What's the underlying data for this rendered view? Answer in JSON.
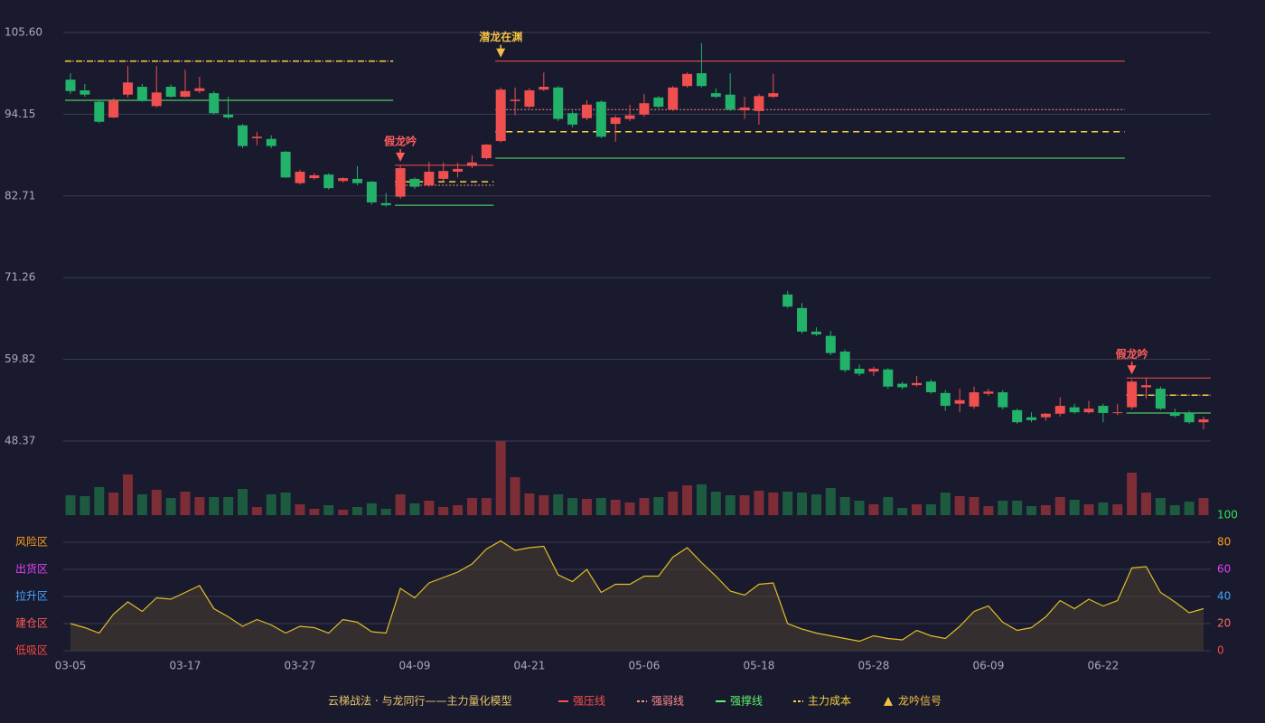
{
  "chart_data": {
    "type": "candlestick",
    "categories": [
      "03-05",
      null,
      null,
      null,
      null,
      null,
      null,
      null,
      "03-17",
      null,
      null,
      null,
      null,
      null,
      null,
      null,
      "03-27",
      null,
      null,
      null,
      null,
      null,
      null,
      null,
      "04-09",
      null,
      null,
      null,
      null,
      null,
      null,
      null,
      "04-21",
      null,
      null,
      null,
      null,
      null,
      null,
      null,
      "05-06",
      null,
      null,
      null,
      null,
      null,
      null,
      null,
      "05-18",
      null,
      null,
      null,
      null,
      null,
      null,
      null,
      "05-28",
      null,
      null,
      null,
      null,
      null,
      null,
      null,
      "06-09",
      null,
      null,
      null,
      null,
      null,
      null,
      null,
      "06-22",
      null,
      null,
      null,
      null,
      null,
      null,
      null
    ],
    "ylim": [
      48.37,
      105.6
    ],
    "yticks": [
      {
        "value": 105.6,
        "label": "105.60"
      },
      94.15,
      82.71,
      71.26,
      59.82,
      48.37
    ],
    "grid": true,
    "up_color": "#ef4f4f",
    "down_color": "#22b26a",
    "open": [
      99.0,
      97.5,
      95.9,
      93.7,
      96.9,
      98.0,
      95.3,
      98.0,
      96.6,
      97.4,
      97.1,
      94.1,
      92.6,
      90.8,
      90.7,
      88.9,
      84.5,
      85.2,
      85.7,
      84.8,
      85.1,
      84.7,
      81.7,
      82.6,
      85.1,
      84.2,
      85.1,
      86.1,
      86.9,
      88.0,
      90.4,
      96.0,
      95.2,
      97.6,
      97.9,
      94.3,
      93.6,
      95.9,
      92.8,
      93.5,
      94.1,
      96.5,
      94.8,
      98.1,
      99.9,
      97.1,
      96.9,
      94.7,
      94.6,
      96.6,
      68.9,
      67.0,
      63.7,
      63.1,
      60.9,
      58.5,
      58.1,
      58.4,
      56.4,
      56.2,
      56.7,
      55.1,
      53.6,
      53.2,
      55.0,
      55.2,
      52.7,
      51.7,
      51.7,
      52.2,
      53.1,
      52.4,
      53.3,
      52.3,
      53.1,
      55.9,
      55.7,
      52.4,
      52.3,
      51.0
    ],
    "high": [
      99.9,
      98.4,
      96.0,
      96.4,
      100.9,
      98.4,
      100.9,
      98.3,
      100.4,
      99.4,
      97.4,
      96.6,
      92.8,
      91.7,
      91.2,
      89.0,
      86.4,
      85.9,
      85.9,
      85.3,
      86.9,
      84.8,
      83.1,
      87.0,
      85.3,
      87.5,
      87.4,
      87.4,
      88.4,
      90.0,
      97.9,
      97.9,
      97.8,
      100.0,
      98.1,
      94.6,
      96.1,
      96.1,
      94.0,
      95.5,
      97.0,
      96.7,
      98.1,
      100.0,
      104.1,
      97.8,
      99.9,
      96.6,
      97.0,
      99.8,
      69.4,
      67.7,
      64.3,
      63.8,
      61.2,
      59.1,
      58.8,
      58.6,
      56.7,
      57.5,
      57.0,
      55.5,
      55.7,
      56.0,
      55.7,
      55.5,
      52.9,
      52.4,
      52.3,
      54.5,
      53.6,
      54.0,
      53.6,
      53.6,
      57.0,
      57.2,
      56.0,
      52.9,
      52.6,
      51.8
    ],
    "low": [
      97.0,
      96.6,
      92.9,
      93.6,
      96.5,
      95.9,
      95.1,
      96.5,
      96.5,
      97.1,
      94.1,
      93.5,
      89.4,
      89.8,
      89.4,
      85.2,
      84.3,
      85.0,
      83.6,
      84.6,
      84.2,
      81.5,
      81.2,
      82.3,
      83.7,
      84.0,
      84.8,
      85.3,
      86.6,
      87.8,
      90.2,
      94.0,
      95.0,
      97.4,
      93.2,
      92.3,
      93.3,
      90.8,
      90.3,
      93.2,
      93.8,
      95.0,
      94.6,
      97.9,
      97.9,
      96.4,
      94.6,
      93.5,
      92.7,
      96.4,
      67.0,
      63.4,
      63.1,
      60.4,
      58.0,
      57.5,
      57.5,
      55.7,
      55.6,
      56.0,
      55.0,
      52.6,
      52.4,
      52.9,
      54.7,
      52.8,
      50.8,
      51.0,
      51.2,
      51.8,
      52.2,
      52.2,
      51.0,
      52.0,
      52.8,
      54.3,
      52.7,
      51.7,
      50.8,
      50.0
    ],
    "close": [
      97.4,
      96.9,
      93.1,
      96.1,
      98.6,
      96.0,
      97.2,
      96.6,
      97.4,
      97.8,
      94.3,
      93.7,
      89.7,
      91.0,
      89.7,
      85.3,
      86.1,
      85.6,
      83.8,
      85.2,
      84.5,
      81.8,
      81.4,
      86.6,
      84.0,
      86.1,
      86.2,
      86.5,
      87.4,
      89.9,
      97.6,
      96.2,
      97.5,
      98.0,
      93.5,
      92.7,
      95.5,
      91.0,
      93.7,
      94.0,
      95.7,
      95.2,
      97.9,
      99.8,
      98.1,
      96.6,
      94.8,
      95.1,
      96.7,
      97.1,
      67.2,
      63.7,
      63.3,
      60.7,
      58.3,
      57.8,
      58.5,
      56.0,
      55.9,
      56.5,
      55.2,
      53.3,
      54.1,
      55.2,
      55.3,
      53.1,
      51.0,
      51.3,
      52.2,
      53.3,
      52.4,
      52.9,
      52.3,
      52.4,
      56.7,
      56.2,
      52.9,
      51.9,
      51.0,
      51.4
    ],
    "volume": [
      22,
      21,
      31,
      25,
      45,
      23,
      28,
      19,
      26,
      20,
      20,
      20,
      29,
      9,
      23,
      25,
      12,
      7,
      11,
      6,
      9,
      13,
      7,
      23,
      13,
      16,
      9,
      11,
      19,
      19,
      82,
      42,
      24,
      22,
      23,
      19,
      18,
      19,
      17,
      14,
      19,
      20,
      26,
      33,
      34,
      26,
      22,
      22,
      27,
      25,
      26,
      25,
      23,
      30,
      20,
      16,
      12,
      20,
      8,
      12,
      12,
      25,
      21,
      20,
      10,
      16,
      16,
      10,
      11,
      20,
      17,
      12,
      14,
      12,
      47,
      25,
      19,
      11,
      15,
      19
    ],
    "volume_up_color": "#7c2d36",
    "volume_down_color": "#1d5b40",
    "levels": [
      {
        "from": 0,
        "to": 22,
        "values": [
          null,
          101.6,
          96.1,
          101.6
        ]
      },
      {
        "from": 23,
        "to": 29,
        "values": [
          87.0,
          84.2,
          81.4,
          84.7
        ]
      },
      {
        "from": 30,
        "to": 73,
        "values": [
          101.6,
          94.8,
          88.0,
          91.7
        ]
      },
      {
        "from": 74,
        "to": 79,
        "values": [
          57.2,
          54.8,
          52.3,
          54.8
        ]
      }
    ],
    "signals": [
      {
        "index": 23,
        "label": "假龙吟",
        "color": "#ff5c5c"
      },
      {
        "index": 30,
        "label": "潜龙在渊",
        "color": "#f2c043"
      },
      {
        "index": 74,
        "label": "假龙吟",
        "color": "#ff5c5c"
      }
    ],
    "indicator": {
      "values": [
        20,
        17,
        13,
        27,
        36,
        29,
        39,
        38,
        43,
        48,
        31,
        25,
        18,
        23,
        19,
        13,
        18,
        17,
        13,
        23,
        21,
        14,
        13,
        46,
        39,
        50,
        54,
        58,
        64,
        75,
        81,
        74,
        76,
        77,
        56,
        51,
        60,
        43,
        49,
        49,
        55,
        55,
        69,
        76,
        65,
        55,
        44,
        41,
        49,
        50,
        20,
        16,
        13,
        11,
        9,
        7,
        11,
        9,
        8,
        15,
        11,
        9,
        18,
        29,
        33,
        21,
        15,
        17,
        25,
        37,
        31,
        38,
        33,
        37,
        61,
        62,
        43,
        36,
        28,
        31
      ],
      "color": "#e2bd28",
      "ylim": [
        0,
        100
      ],
      "yticks": [
        0,
        20,
        40,
        60,
        80,
        100
      ],
      "tick_colors": [
        "#ff4444",
        "#ff6b5e",
        "#4aa3ff",
        "#e040fb",
        "#ff9f1a",
        "#33e05a"
      ],
      "zones": [
        {
          "label": "风险区",
          "value": 80,
          "color": "#ff9f1a"
        },
        {
          "label": "出货区",
          "value": 60,
          "color": "#e040fb"
        },
        {
          "label": "拉升区",
          "value": 40,
          "color": "#4aa3ff"
        },
        {
          "label": "建仓区",
          "value": 20,
          "color": "#ff5a5a"
        },
        {
          "label": "低吸区",
          "value": 0,
          "color": "#ff4444"
        }
      ]
    },
    "legend": {
      "title": "云梯战法 · 与龙同行——主力量化模型",
      "title_color": "#e8c46a",
      "items": [
        {
          "name": "强压线",
          "color": "#ff4d4d",
          "style": "solid"
        },
        {
          "name": "强弱线",
          "color": "#ff8a8a",
          "style": "dotted"
        },
        {
          "name": "强撑线",
          "color": "#5cf070",
          "style": "solid"
        },
        {
          "name": "主力成本",
          "color": "#f5d23c",
          "style": "dashed"
        },
        {
          "name": "龙吟信号",
          "color": "#f2c043",
          "style": "triangle"
        }
      ]
    }
  }
}
